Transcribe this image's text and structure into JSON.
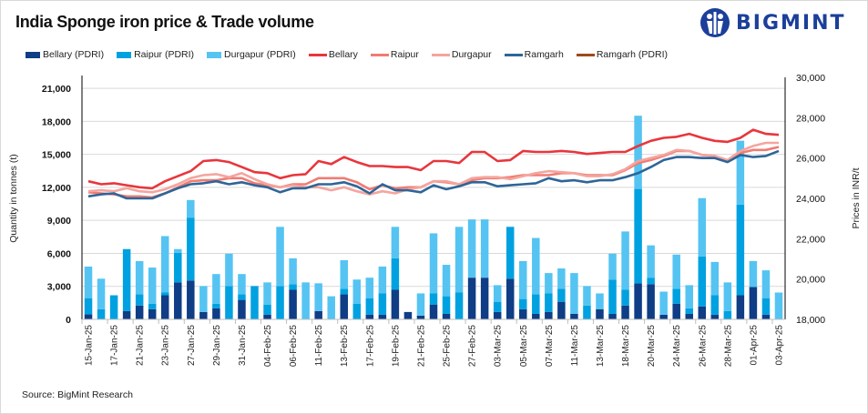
{
  "header": {
    "title": "India Sponge iron price & Trade volume",
    "logo_text": "BIGMINT"
  },
  "footer": {
    "source": "Source: BigMint Research"
  },
  "chart_data": {
    "type": "bar+line",
    "title": "India Sponge iron price & Trade volume",
    "legend_position": "top",
    "grid": true,
    "y_left": {
      "label": "Quantity in tonnes (t)",
      "lim": [
        0,
        22000
      ],
      "ticks": [
        0,
        3000,
        6000,
        9000,
        12000,
        15000,
        18000,
        21000
      ],
      "tick_labels": [
        "0",
        "3,000",
        "6,000",
        "9,000",
        "12,000",
        "15,000",
        "18,000",
        "21,000"
      ]
    },
    "y_right": {
      "label": "Prices in INR/t",
      "lim": [
        18000,
        30000
      ],
      "ticks": [
        18000,
        20000,
        22000,
        24000,
        26000,
        28000,
        30000
      ],
      "tick_labels": [
        "18,000",
        "20,000",
        "22,000",
        "24,000",
        "26,000",
        "28,000",
        "30,000"
      ]
    },
    "categories": [
      "15-Jan-25",
      "",
      "17-Jan-25",
      "",
      "21-Jan-25",
      "",
      "23-Jan-25",
      "",
      "27-Jan-25",
      "",
      "29-Jan-25",
      "",
      "31-Jan-25",
      "",
      "04-Feb-25",
      "",
      "06-Feb-25",
      "",
      "11-Feb-25",
      "",
      "13-Feb-25",
      "",
      "17-Feb-25",
      "",
      "19-Feb-25",
      "",
      "21-Feb-25",
      "",
      "25-Feb-25",
      "",
      "27-Feb-25",
      "",
      "03-Mar-25",
      "",
      "05-Mar-25",
      "",
      "07-Mar-25",
      "",
      "11-Mar-25",
      "",
      "13-Mar-25",
      "",
      "18-Mar-25",
      "",
      "20-Mar-25",
      "",
      "24-Mar-25",
      "",
      "26-Mar-25",
      "",
      "28-Mar-25",
      "",
      "01-Apr-25",
      "",
      "03-Apr-25"
    ],
    "bar_series": [
      {
        "name": "Bellary (PDRI)",
        "color": "#0f3d86",
        "axis": "left",
        "stacked": true,
        "values": [
          450,
          0,
          0,
          760,
          1260,
          930,
          2190,
          3360,
          3530,
          670,
          1010,
          0,
          1770,
          0,
          420,
          0,
          2690,
          0,
          760,
          0,
          2270,
          0,
          420,
          420,
          2690,
          670,
          340,
          1350,
          500,
          0,
          3790,
          3790,
          670,
          3700,
          930,
          500,
          670,
          1600,
          500,
          0,
          930,
          500,
          1260,
          3280,
          3200,
          420,
          1430,
          500,
          1180,
          420,
          0,
          2190,
          2940,
          420,
          0
        ]
      },
      {
        "name": "Raipur (PDRI)",
        "color": "#00a1e0",
        "axis": "left",
        "stacked": true,
        "values": [
          1480,
          930,
          2190,
          5630,
          1010,
          500,
          250,
          2700,
          5720,
          0,
          420,
          3030,
          500,
          3030,
          930,
          3030,
          510,
          0,
          0,
          0,
          510,
          1430,
          1510,
          1940,
          2860,
          0,
          0,
          1010,
          1600,
          2440,
          0,
          0,
          930,
          4710,
          920,
          1770,
          1690,
          1180,
          0,
          1260,
          0,
          3120,
          1430,
          8580,
          590,
          0,
          1350,
          510,
          4540,
          1770,
          760,
          8240,
          0,
          1510,
          0
        ]
      },
      {
        "name": "Durgapur (PDRI)",
        "color": "#55c4f2",
        "axis": "left",
        "stacked": true,
        "values": [
          2870,
          2770,
          0,
          0,
          3030,
          3280,
          5130,
          330,
          1600,
          2360,
          2690,
          2940,
          1850,
          0,
          2010,
          5380,
          2350,
          3360,
          2520,
          2100,
          2600,
          2190,
          1860,
          2440,
          2860,
          0,
          2020,
          5460,
          2860,
          5970,
          5300,
          5300,
          1510,
          0,
          3450,
          5130,
          1850,
          1850,
          3710,
          1770,
          1430,
          2350,
          5300,
          6650,
          2940,
          2100,
          3110,
          2100,
          5300,
          3030,
          2600,
          5810,
          2360,
          2530,
          2440
        ]
      }
    ],
    "line_series": [
      {
        "name": "Bellary",
        "color": "#e8363c",
        "axis": "right",
        "values": [
          24850,
          24700,
          24750,
          24650,
          24550,
          24500,
          24850,
          25100,
          25350,
          25850,
          25900,
          25800,
          25550,
          25300,
          25250,
          25000,
          25150,
          25200,
          25850,
          25700,
          26050,
          25800,
          25600,
          25600,
          25550,
          25550,
          25400,
          25850,
          25850,
          25750,
          26300,
          26300,
          25850,
          25900,
          26350,
          26300,
          26300,
          26350,
          26300,
          26200,
          26250,
          26300,
          26300,
          26600,
          26850,
          27000,
          27050,
          27200,
          27000,
          26850,
          26800,
          27000,
          27400,
          27200,
          27150
        ]
      },
      {
        "name": "Raipur",
        "color": "#f07c73",
        "axis": "right",
        "values": [
          24300,
          24250,
          24200,
          24100,
          24100,
          24050,
          24250,
          24550,
          24850,
          24900,
          24900,
          25000,
          25000,
          24750,
          24650,
          24550,
          24700,
          24700,
          25000,
          25000,
          25000,
          24800,
          24450,
          24650,
          24500,
          24550,
          24550,
          24850,
          24800,
          24700,
          24900,
          25000,
          25000,
          25050,
          25150,
          25150,
          25150,
          25250,
          25250,
          25150,
          25150,
          25150,
          25400,
          25750,
          25900,
          26100,
          26350,
          26350,
          26150,
          26100,
          25850,
          26250,
          26400,
          26400,
          26550
        ]
      },
      {
        "name": "Durgapur",
        "color": "#f4a59e",
        "axis": "right",
        "values": [
          24350,
          24400,
          24350,
          24500,
          24350,
          24300,
          24450,
          24700,
          25000,
          25150,
          25200,
          25050,
          25250,
          24950,
          24700,
          24550,
          24650,
          24550,
          24550,
          24400,
          24550,
          24350,
          24200,
          24350,
          24250,
          24450,
          24550,
          24850,
          24850,
          24700,
          25000,
          25050,
          25050,
          24950,
          25100,
          25250,
          25350,
          25300,
          25250,
          25100,
          25100,
          25200,
          25450,
          25850,
          26000,
          26150,
          26400,
          26350,
          26150,
          26100,
          25900,
          26350,
          26600,
          26750,
          26750
        ]
      },
      {
        "name": "Ramgarh",
        "color": "#2e6598",
        "axis": "right",
        "values": [
          24100,
          24200,
          24250,
          24000,
          24000,
          24000,
          24250,
          24500,
          24700,
          24750,
          24850,
          24700,
          24800,
          24650,
          24550,
          24300,
          24500,
          24500,
          24700,
          24700,
          24800,
          24600,
          24250,
          24700,
          24400,
          24400,
          24300,
          24650,
          24450,
          24600,
          24800,
          24800,
          24600,
          24650,
          24700,
          24750,
          25000,
          24850,
          24900,
          24800,
          24900,
          24900,
          25050,
          25250,
          25550,
          25900,
          26050,
          26050,
          26000,
          26000,
          25800,
          26150,
          26050,
          26100,
          26350
        ]
      },
      {
        "name": "Ramgarh (PDRI)",
        "color": "#9e4a16",
        "axis": "right",
        "values": []
      }
    ]
  }
}
